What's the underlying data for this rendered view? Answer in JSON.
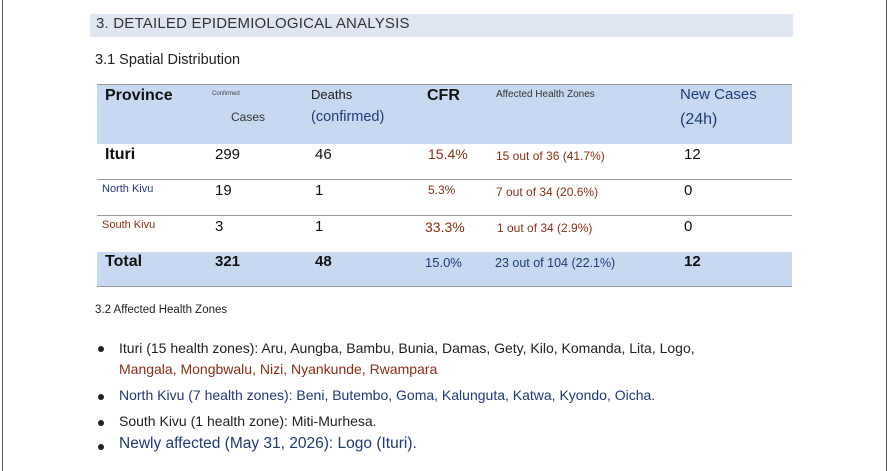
{
  "section": {
    "title": "3. DETAILED EPIDEMIOLOGICAL ANALYSIS"
  },
  "subsection1": {
    "title": "3.1 Spatial Distribution"
  },
  "table": {
    "headers": {
      "province": "Province",
      "confirmed_small": "Confirmed",
      "cases": "Cases",
      "deaths": "Deaths",
      "deaths_sub": "(confirmed)",
      "cfr": "CFR",
      "zones": "Affected Health Zones",
      "new_cases": "New Cases",
      "new_cases_sub": "(24h)"
    },
    "rows": [
      {
        "province": "Ituri",
        "cases": "299",
        "deaths": "46",
        "cfr": "15.4%",
        "zones": "15 out of 36 (41.7%)",
        "new": "12"
      },
      {
        "province": "North Kivu",
        "cases": "19",
        "deaths": "1",
        "cfr": "5.3%",
        "zones": "7 out of 34 (20.6%)",
        "new": "0"
      },
      {
        "province": "South Kivu",
        "cases": "3",
        "deaths": "1",
        "cfr": "33.3%",
        "zones": "1 out of 34 (2.9%)",
        "new": "0"
      }
    ],
    "total": {
      "province": "Total",
      "cases": "321",
      "deaths": "48",
      "cfr": "15.0%",
      "zones": "23 out of 104 (22.1%)",
      "new": "12"
    }
  },
  "subsection2": {
    "title": "3.2 Affected Health Zones"
  },
  "bullets": [
    {
      "line1": "Ituri (15 health zones): Aru, Aungba, Bambu, Bunia, Damas, Gety, Kilo, Komanda, Lita, Logo,",
      "line2": "Mangala, Mongbwalu, Nizi, Nyankunde, Rwampara"
    },
    {
      "text": "North Kivu (7 health zones): Beni, Butembo, Goma, Kalunguta, Katwa, Kyondo, Oicha."
    },
    {
      "text": "South Kivu (1 health zone): Miti-Murhesa."
    },
    {
      "text": "Newly affected (May 31, 2026): Logo (Ituri)."
    }
  ],
  "colors": {
    "header_fill": "#c6d9f1",
    "section_band": "#dfe6f2",
    "accent_red": "#8b2e16",
    "accent_blue": "#1f3a78"
  }
}
